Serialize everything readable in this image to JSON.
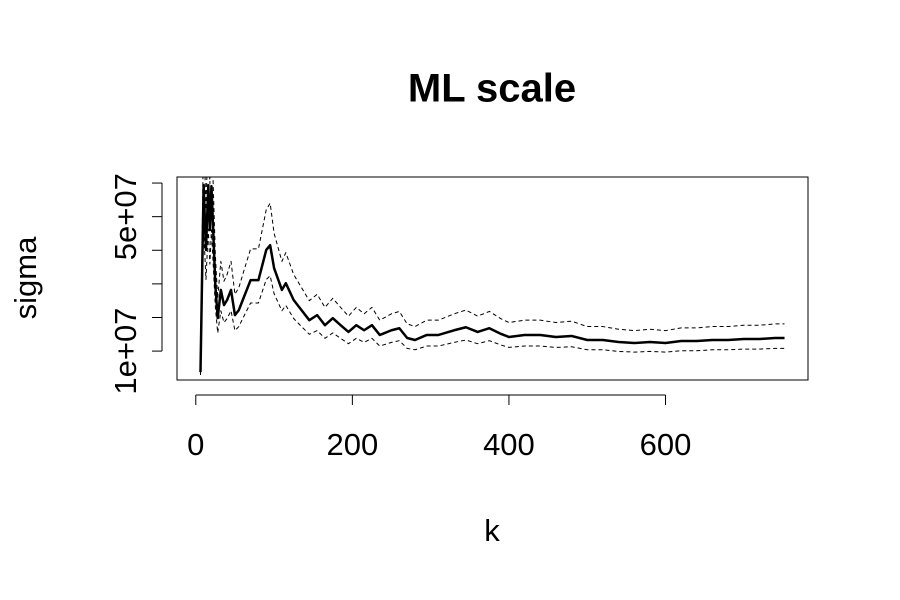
{
  "chart_data": {
    "type": "line",
    "title": "ML scale",
    "x_label": "k",
    "y_label": "sigma",
    "x": [
      6,
      10,
      13,
      16,
      18,
      20,
      25,
      28,
      32,
      36,
      40,
      45,
      50,
      55,
      60,
      70,
      80,
      90,
      95,
      100,
      110,
      115,
      125,
      135,
      145,
      155,
      165,
      175,
      185,
      195,
      205,
      215,
      225,
      235,
      250,
      260,
      270,
      280,
      295,
      310,
      330,
      345,
      360,
      375,
      390,
      400,
      420,
      440,
      460,
      480,
      500,
      520,
      540,
      560,
      580,
      600,
      620,
      640,
      660,
      680,
      700,
      720,
      740,
      752
    ],
    "series": [
      {
        "color": "#000000",
        "dash": false,
        "width": 2.5,
        "values": [
          3750000.0,
          59400000.0,
          40100000.0,
          59400000.0,
          46000000.0,
          59100000.0,
          29600000.0,
          19800000.0,
          28200000.0,
          23700000.0,
          25200000.0,
          28200000.0,
          20700000.0,
          22200000.0,
          25200000.0,
          31100000.0,
          31100000.0,
          40100000.0,
          41500000.0,
          34700000.0,
          28200000.0,
          30200000.0,
          25200000.0,
          22200000.0,
          19200000.0,
          20700000.0,
          17700000.0,
          19800000.0,
          17700000.0,
          15700000.0,
          17700000.0,
          16200000.0,
          17700000.0,
          14800000.0,
          16200000.0,
          16800000.0,
          13900000.0,
          13300000.0,
          14800000.0,
          14800000.0,
          16200000.0,
          17100000.0,
          15700000.0,
          16800000.0,
          15100000.0,
          14200000.0,
          14800000.0,
          14800000.0,
          14200000.0,
          14500000.0,
          13300000.0,
          13300000.0,
          12700000.0,
          12400000.0,
          12700000.0,
          12400000.0,
          13000000.0,
          13000000.0,
          13300000.0,
          13300000.0,
          13600000.0,
          13600000.0,
          13900000.0,
          13900000.0
        ]
      },
      {
        "color": "#000000",
        "dash": true,
        "width": 1,
        "values": [
          4900000.0,
          77200000.0,
          52100000.0,
          77200000.0,
          59800000.0,
          76800000.0,
          38500000.0,
          25700000.0,
          36700000.0,
          30800000.0,
          32800000.0,
          36700000.0,
          26900000.0,
          28900000.0,
          32800000.0,
          40400000.0,
          40400000.0,
          52100000.0,
          54000000.0,
          45100000.0,
          36700000.0,
          39300000.0,
          32800000.0,
          28900000.0,
          25000000.0,
          26900000.0,
          23000000.0,
          25700000.0,
          23000000.0,
          20400000.0,
          23000000.0,
          21100000.0,
          23000000.0,
          19200000.0,
          21100000.0,
          21800000.0,
          18100000.0,
          17300000.0,
          19200000.0,
          19200000.0,
          21100000.0,
          22200000.0,
          20400000.0,
          21800000.0,
          19600000.0,
          18500000.0,
          19200000.0,
          19200000.0,
          18500000.0,
          18900000.0,
          17300000.0,
          17300000.0,
          16500000.0,
          16100000.0,
          16500000.0,
          16100000.0,
          16900000.0,
          16900000.0,
          17300000.0,
          17300000.0,
          17700000.0,
          17700000.0,
          18100000.0,
          18100000.0
        ]
      },
      {
        "color": "#000000",
        "dash": true,
        "width": 1,
        "values": [
          2900000.0,
          46300000.0,
          31300000.0,
          46300000.0,
          35900000.0,
          46100000.0,
          23100000.0,
          15400000.0,
          22000000.0,
          18500000.0,
          19700000.0,
          22000000.0,
          16100000.0,
          17300000.0,
          19700000.0,
          24300000.0,
          24300000.0,
          31300000.0,
          32400000.0,
          27100000.0,
          22000000.0,
          23600000.0,
          19700000.0,
          17300000.0,
          15000000.0,
          16100000.0,
          13800000.0,
          15400000.0,
          13800000.0,
          12200000.0,
          13800000.0,
          12600000.0,
          13800000.0,
          11500000.0,
          12600000.0,
          13100000.0,
          10800000.0,
          10400000.0,
          11500000.0,
          11500000.0,
          12600000.0,
          13300000.0,
          12200000.0,
          13100000.0,
          11800000.0,
          11100000.0,
          11500000.0,
          11500000.0,
          11100000.0,
          11300000.0,
          10400000.0,
          10400000.0,
          9900000.0,
          9700000.0,
          9900000.0,
          9700000.0,
          10100000.0,
          10100000.0,
          10400000.0,
          10400000.0,
          10600000.0,
          10600000.0,
          10800000.0,
          10800000.0
        ]
      }
    ],
    "xlim": [
      -24,
      782
    ],
    "xticks": [
      0,
      200,
      400,
      600
    ],
    "ylim": [
      1400000.0,
      61800000.0
    ],
    "yticks": [
      {
        "value": 10000000,
        "label": "1e+07"
      },
      {
        "value": 50000000,
        "label": "5e+07"
      }
    ],
    "yticks_unlabeled": [
      20000000,
      30000000,
      40000000,
      60000000
    ]
  }
}
